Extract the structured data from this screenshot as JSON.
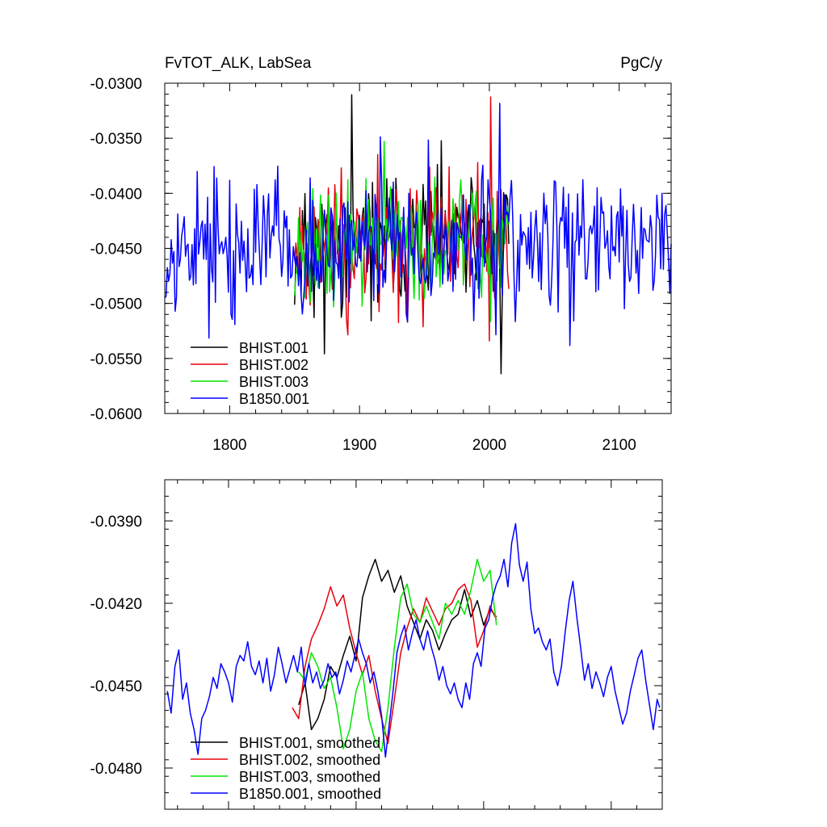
{
  "chart_data": [
    {
      "type": "line",
      "title_left": "FvTOT_ALK, LabSea",
      "title_right": "PgC/y",
      "xlim": [
        1750,
        2140
      ],
      "ylim": [
        -0.06,
        -0.03
      ],
      "x_ticks": [
        1800,
        1900,
        2000,
        2100
      ],
      "x_tick_labels": [
        "1800",
        "1900",
        "2000",
        "2100"
      ],
      "y_ticks": [
        -0.03,
        -0.035,
        -0.04,
        -0.045,
        -0.05,
        -0.055,
        -0.06
      ],
      "y_tick_labels": [
        "-0.0300",
        "-0.0350",
        "-0.0400",
        "-0.0450",
        "-0.0500",
        "-0.0550",
        "-0.0600"
      ],
      "legend_position": "bottom-left",
      "series": [
        {
          "name": "BHIST.001",
          "color": "#000000",
          "x_range": [
            1850,
            2015
          ],
          "mean": -0.0445,
          "amplitude": 0.0038,
          "seed": 11
        },
        {
          "name": "BHIST.002",
          "color": "#e8000b",
          "x_range": [
            1850,
            2015
          ],
          "mean": -0.0445,
          "amplitude": 0.0037,
          "seed": 23
        },
        {
          "name": "BHIST.003",
          "color": "#00e600",
          "x_range": [
            1850,
            2015
          ],
          "mean": -0.0445,
          "amplitude": 0.0037,
          "seed": 37
        },
        {
          "name": "B1850.001",
          "color": "#0000ff",
          "x_range": [
            1750,
            2140
          ],
          "mean": -0.0446,
          "amplitude": 0.0038,
          "seed": 53
        }
      ]
    },
    {
      "type": "line",
      "xlim": [
        1750,
        2140
      ],
      "ylim": [
        -0.0495,
        -0.0375
      ],
      "y_ticks": [
        -0.039,
        -0.042,
        -0.045,
        -0.048
      ],
      "y_tick_labels": [
        "-0.0390",
        "-0.0420",
        "-0.0450",
        "-0.0480"
      ],
      "legend_position": "bottom-left",
      "series": [
        {
          "name": "BHIST.001, smoothed",
          "color": "#000000",
          "points": [
            [
              1855,
              -0.0457
            ],
            [
              1860,
              -0.0449
            ],
            [
              1865,
              -0.0466
            ],
            [
              1870,
              -0.0462
            ],
            [
              1875,
              -0.0455
            ],
            [
              1880,
              -0.0443
            ],
            [
              1885,
              -0.0447
            ],
            [
              1890,
              -0.0439
            ],
            [
              1895,
              -0.0432
            ],
            [
              1900,
              -0.0441
            ],
            [
              1905,
              -0.0418
            ],
            [
              1910,
              -0.041
            ],
            [
              1915,
              -0.0404
            ],
            [
              1920,
              -0.0412
            ],
            [
              1925,
              -0.0408
            ],
            [
              1930,
              -0.0416
            ],
            [
              1935,
              -0.041
            ],
            [
              1940,
              -0.0421
            ],
            [
              1945,
              -0.0427
            ],
            [
              1950,
              -0.0433
            ],
            [
              1955,
              -0.0426
            ],
            [
              1960,
              -0.043
            ],
            [
              1965,
              -0.0437
            ],
            [
              1970,
              -0.0431
            ],
            [
              1975,
              -0.0426
            ],
            [
              1980,
              -0.0424
            ],
            [
              1985,
              -0.0415
            ],
            [
              1990,
              -0.0425
            ],
            [
              1995,
              -0.0419
            ],
            [
              2000,
              -0.0428
            ],
            [
              2005,
              -0.0422
            ],
            [
              2010,
              -0.0425
            ]
          ]
        },
        {
          "name": "BHIST.002, smoothed",
          "color": "#e8000b",
          "points": [
            [
              1850,
              -0.0458
            ],
            [
              1855,
              -0.0462
            ],
            [
              1860,
              -0.0443
            ],
            [
              1865,
              -0.0433
            ],
            [
              1870,
              -0.0428
            ],
            [
              1875,
              -0.0422
            ],
            [
              1880,
              -0.0414
            ],
            [
              1885,
              -0.0421
            ],
            [
              1890,
              -0.0417
            ],
            [
              1895,
              -0.0429
            ],
            [
              1900,
              -0.0438
            ],
            [
              1905,
              -0.0446
            ],
            [
              1910,
              -0.0439
            ],
            [
              1915,
              -0.0452
            ],
            [
              1920,
              -0.0462
            ],
            [
              1925,
              -0.0471
            ],
            [
              1930,
              -0.0455
            ],
            [
              1935,
              -0.0438
            ],
            [
              1940,
              -0.0429
            ],
            [
              1945,
              -0.0422
            ],
            [
              1950,
              -0.0427
            ],
            [
              1955,
              -0.0418
            ],
            [
              1960,
              -0.0423
            ],
            [
              1965,
              -0.0428
            ],
            [
              1970,
              -0.0422
            ],
            [
              1975,
              -0.042
            ],
            [
              1980,
              -0.0415
            ],
            [
              1985,
              -0.0413
            ],
            [
              1990,
              -0.0419
            ],
            [
              1995,
              -0.0436
            ],
            [
              2000,
              -0.043
            ],
            [
              2005,
              -0.0421
            ],
            [
              2010,
              -0.0426
            ]
          ]
        },
        {
          "name": "BHIST.003, smoothed",
          "color": "#00e600",
          "points": [
            [
              1855,
              -0.0445
            ],
            [
              1860,
              -0.0448
            ],
            [
              1865,
              -0.0438
            ],
            [
              1870,
              -0.0443
            ],
            [
              1875,
              -0.0451
            ],
            [
              1880,
              -0.0447
            ],
            [
              1885,
              -0.0458
            ],
            [
              1890,
              -0.0473
            ],
            [
              1895,
              -0.0466
            ],
            [
              1900,
              -0.0452
            ],
            [
              1905,
              -0.0445
            ],
            [
              1910,
              -0.0462
            ],
            [
              1915,
              -0.047
            ],
            [
              1920,
              -0.0474
            ],
            [
              1925,
              -0.0458
            ],
            [
              1930,
              -0.0436
            ],
            [
              1935,
              -0.0418
            ],
            [
              1940,
              -0.0413
            ],
            [
              1945,
              -0.0424
            ],
            [
              1950,
              -0.0427
            ],
            [
              1955,
              -0.0421
            ],
            [
              1960,
              -0.0427
            ],
            [
              1965,
              -0.0433
            ],
            [
              1970,
              -0.042
            ],
            [
              1975,
              -0.0424
            ],
            [
              1980,
              -0.0419
            ],
            [
              1985,
              -0.0424
            ],
            [
              1990,
              -0.0415
            ],
            [
              1995,
              -0.0404
            ],
            [
              2000,
              -0.0412
            ],
            [
              2005,
              -0.0408
            ],
            [
              2010,
              -0.0428
            ]
          ]
        },
        {
          "name": "B1850.001, smoothed",
          "color": "#0000ff",
          "points": [
            [
              1752,
              -0.0452
            ],
            [
              1755,
              -0.046
            ],
            [
              1758,
              -0.0443
            ],
            [
              1761,
              -0.0437
            ],
            [
              1764,
              -0.0455
            ],
            [
              1767,
              -0.0449
            ],
            [
              1770,
              -0.046
            ],
            [
              1773,
              -0.0466
            ],
            [
              1776,
              -0.0475
            ],
            [
              1779,
              -0.0462
            ],
            [
              1782,
              -0.0459
            ],
            [
              1785,
              -0.0454
            ],
            [
              1788,
              -0.0447
            ],
            [
              1791,
              -0.0451
            ],
            [
              1794,
              -0.0442
            ],
            [
              1797,
              -0.0445
            ],
            [
              1800,
              -0.0449
            ],
            [
              1803,
              -0.0456
            ],
            [
              1806,
              -0.0443
            ],
            [
              1809,
              -0.0439
            ],
            [
              1812,
              -0.0441
            ],
            [
              1815,
              -0.0434
            ],
            [
              1818,
              -0.0443
            ],
            [
              1821,
              -0.0446
            ],
            [
              1824,
              -0.0441
            ],
            [
              1827,
              -0.0449
            ],
            [
              1830,
              -0.044
            ],
            [
              1833,
              -0.0452
            ],
            [
              1836,
              -0.0446
            ],
            [
              1839,
              -0.0436
            ],
            [
              1842,
              -0.0442
            ],
            [
              1845,
              -0.0449
            ],
            [
              1848,
              -0.0444
            ],
            [
              1851,
              -0.0439
            ],
            [
              1854,
              -0.0445
            ],
            [
              1857,
              -0.0436
            ],
            [
              1860,
              -0.045
            ],
            [
              1863,
              -0.0442
            ],
            [
              1866,
              -0.0449
            ],
            [
              1869,
              -0.0445
            ],
            [
              1872,
              -0.0451
            ],
            [
              1875,
              -0.0448
            ],
            [
              1878,
              -0.0442
            ],
            [
              1881,
              -0.0447
            ],
            [
              1884,
              -0.0445
            ],
            [
              1887,
              -0.0453
            ],
            [
              1890,
              -0.0448
            ],
            [
              1893,
              -0.0441
            ],
            [
              1896,
              -0.0445
            ],
            [
              1899,
              -0.0439
            ],
            [
              1902,
              -0.0433
            ],
            [
              1905,
              -0.0438
            ],
            [
              1908,
              -0.0442
            ],
            [
              1911,
              -0.0449
            ],
            [
              1914,
              -0.0445
            ],
            [
              1917,
              -0.0452
            ],
            [
              1920,
              -0.0461
            ],
            [
              1923,
              -0.0476
            ],
            [
              1926,
              -0.0464
            ],
            [
              1929,
              -0.0452
            ],
            [
              1932,
              -0.0438
            ],
            [
              1935,
              -0.0432
            ],
            [
              1938,
              -0.0428
            ],
            [
              1941,
              -0.0437
            ],
            [
              1944,
              -0.0431
            ],
            [
              1947,
              -0.0426
            ],
            [
              1950,
              -0.0433
            ],
            [
              1953,
              -0.0437
            ],
            [
              1956,
              -0.043
            ],
            [
              1959,
              -0.0436
            ],
            [
              1962,
              -0.0441
            ],
            [
              1965,
              -0.0448
            ],
            [
              1968,
              -0.0443
            ],
            [
              1971,
              -0.045
            ],
            [
              1974,
              -0.0453
            ],
            [
              1977,
              -0.0449
            ],
            [
              1980,
              -0.0455
            ],
            [
              1983,
              -0.0458
            ],
            [
              1986,
              -0.0449
            ],
            [
              1989,
              -0.0455
            ],
            [
              1992,
              -0.0442
            ],
            [
              1995,
              -0.0438
            ],
            [
              1998,
              -0.0443
            ],
            [
              2001,
              -0.0429
            ],
            [
              2004,
              -0.0426
            ],
            [
              2007,
              -0.0418
            ],
            [
              2010,
              -0.0413
            ],
            [
              2013,
              -0.041
            ],
            [
              2016,
              -0.0404
            ],
            [
              2019,
              -0.0414
            ],
            [
              2022,
              -0.0398
            ],
            [
              2025,
              -0.0391
            ],
            [
              2028,
              -0.0406
            ],
            [
              2031,
              -0.0412
            ],
            [
              2034,
              -0.0405
            ],
            [
              2037,
              -0.0422
            ],
            [
              2040,
              -0.0431
            ],
            [
              2043,
              -0.0429
            ],
            [
              2046,
              -0.0434
            ],
            [
              2049,
              -0.0437
            ],
            [
              2052,
              -0.0433
            ],
            [
              2055,
              -0.0445
            ],
            [
              2058,
              -0.045
            ],
            [
              2061,
              -0.0443
            ],
            [
              2064,
              -0.043
            ],
            [
              2067,
              -0.0419
            ],
            [
              2070,
              -0.0412
            ],
            [
              2073,
              -0.0425
            ],
            [
              2076,
              -0.0436
            ],
            [
              2079,
              -0.0448
            ],
            [
              2082,
              -0.0442
            ],
            [
              2085,
              -0.0451
            ],
            [
              2088,
              -0.0445
            ],
            [
              2091,
              -0.0449
            ],
            [
              2094,
              -0.0454
            ],
            [
              2097,
              -0.0447
            ],
            [
              2100,
              -0.0443
            ],
            [
              2103,
              -0.0452
            ],
            [
              2106,
              -0.0458
            ],
            [
              2109,
              -0.0464
            ],
            [
              2112,
              -0.046
            ],
            [
              2115,
              -0.0452
            ],
            [
              2118,
              -0.0446
            ],
            [
              2121,
              -0.044
            ],
            [
              2124,
              -0.0437
            ],
            [
              2127,
              -0.0448
            ],
            [
              2130,
              -0.0457
            ],
            [
              2133,
              -0.0466
            ],
            [
              2136,
              -0.0455
            ],
            [
              2138,
              -0.0458
            ]
          ]
        }
      ]
    }
  ]
}
